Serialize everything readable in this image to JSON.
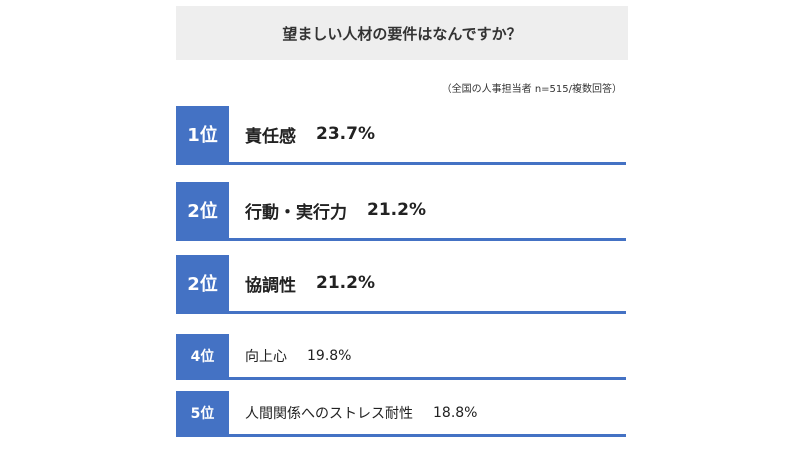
{
  "title": "望ましい人材の要件はなんですか？",
  "note": "（全国の人事担当者 n=515/複数回答）",
  "colors": {
    "accent": "#4472c4",
    "title_bg": "#eeeeee"
  },
  "chart_data": {
    "type": "table",
    "title": "望ましい人材の要件はなんですか？",
    "rows": [
      {
        "rank": "1位",
        "label": "責任感",
        "value": "23.7%",
        "percent": 23.7
      },
      {
        "rank": "2位",
        "label": "行動・実行力",
        "value": "21.2%",
        "percent": 21.2
      },
      {
        "rank": "2位",
        "label": "協調性",
        "value": "21.2%",
        "percent": 21.2
      },
      {
        "rank": "4位",
        "label": "向上心",
        "value": "19.8%",
        "percent": 19.8
      },
      {
        "rank": "5位",
        "label": "人間関係へのストレス耐性",
        "value": "18.8%",
        "percent": 18.8
      }
    ]
  }
}
